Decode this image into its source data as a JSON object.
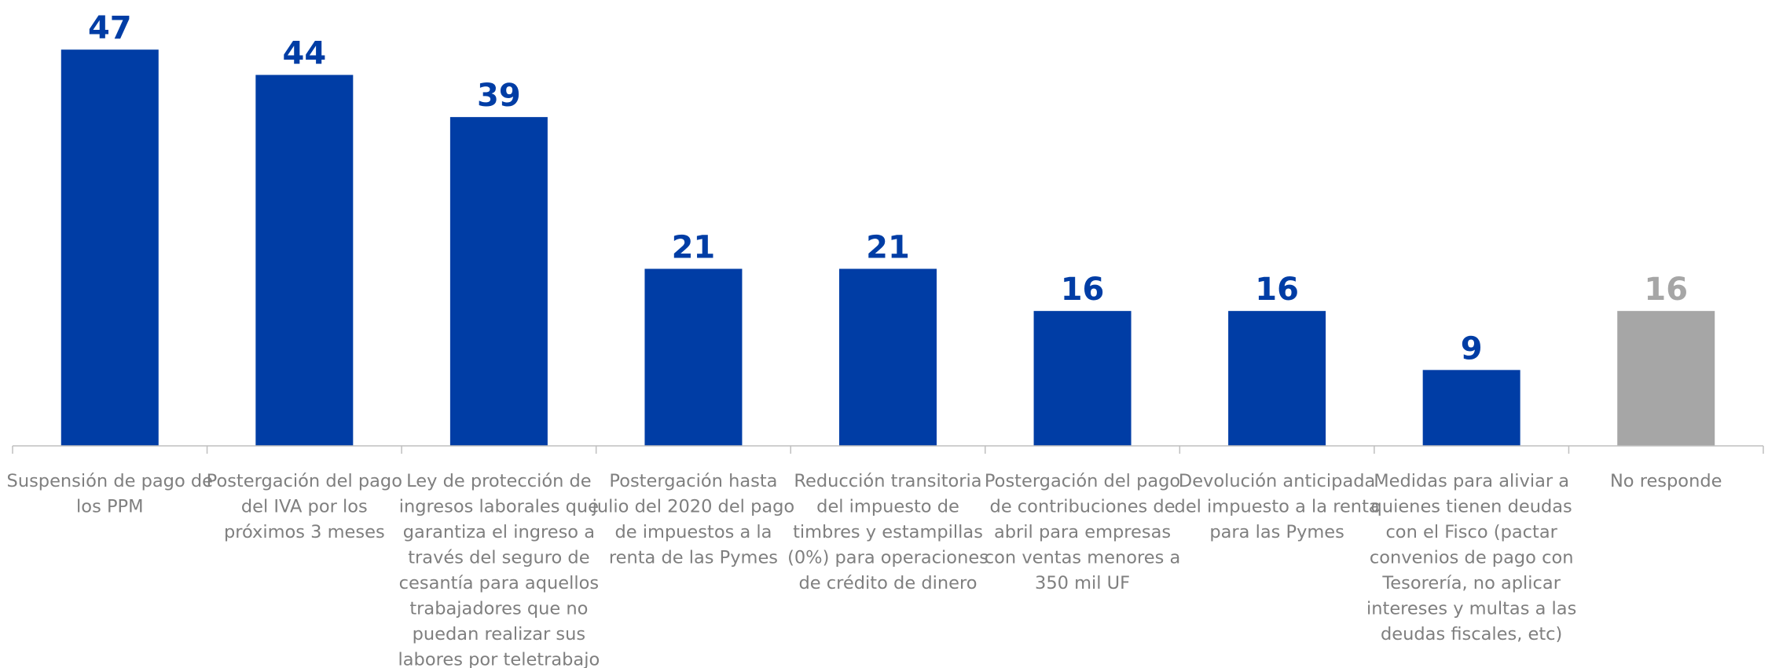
{
  "chart_data": {
    "type": "bar",
    "title": "",
    "xlabel": "",
    "ylabel": "",
    "ylim": [
      0,
      50
    ],
    "grid": false,
    "legend": "none",
    "colors": {
      "primary": "#003DA5",
      "secondary": "#A6A6A6",
      "axis": "#BFBFBF",
      "category_text": "#7F7F7F"
    },
    "categories": [
      [
        "Suspensión de pago de",
        "los PPM"
      ],
      [
        "Postergación del pago",
        "del IVA por los",
        "próximos 3 meses"
      ],
      [
        "Ley de protección de",
        "ingresos laborales que",
        "garantiza el ingreso a",
        "través del seguro de",
        "cesantía para aquellos",
        "trabajadores que no",
        "puedan realizar sus",
        "labores por teletrabajo"
      ],
      [
        "Postergación hasta",
        "julio del 2020 del pago",
        "de impuestos a la",
        "renta de las Pymes"
      ],
      [
        "Reducción transitoria",
        "del impuesto de",
        "timbres y estampillas",
        "(0%) para operaciones",
        "de crédito de dinero"
      ],
      [
        "Postergación del pago",
        "de contribuciones de",
        "abril para empresas",
        "con ventas menores a",
        "350 mil UF"
      ],
      [
        "Devolución anticipada",
        "del impuesto a la renta",
        "para las Pymes"
      ],
      [
        "Medidas para aliviar a",
        "quienes tienen deudas",
        "con el Fisco (pactar",
        "convenios de pago con",
        "Tesorería, no aplicar",
        "intereses y multas a las",
        "deudas fiscales, etc)"
      ],
      [
        "No responde"
      ]
    ],
    "values": [
      47,
      44,
      39,
      21,
      21,
      16,
      16,
      9,
      16
    ],
    "labels": [
      "47",
      "44",
      "39",
      "21",
      "21",
      "16",
      "16",
      "9",
      "16"
    ],
    "bar_color_keys": [
      "primary",
      "primary",
      "primary",
      "primary",
      "primary",
      "primary",
      "primary",
      "primary",
      "secondary"
    ]
  }
}
